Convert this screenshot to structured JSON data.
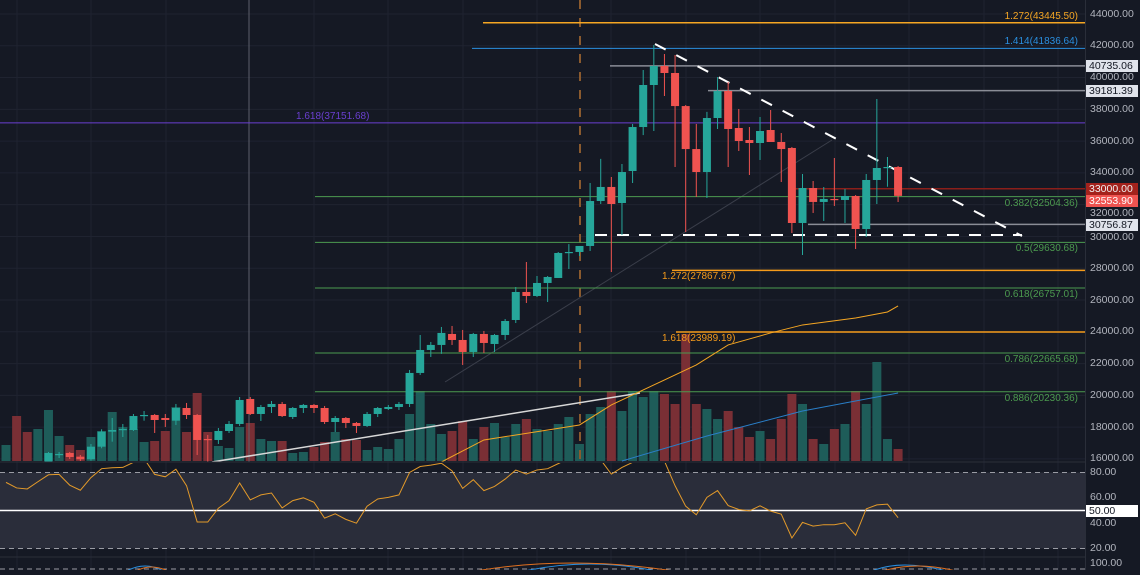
{
  "chart_data": {
    "type": "candlestick",
    "title": "",
    "y_ticks": [
      44000,
      42000,
      40000,
      38000,
      36000,
      34000,
      32000,
      30000,
      28000,
      26000,
      24000,
      22000,
      20000,
      18000,
      16000
    ],
    "y_tick_labels": [
      "44000.00",
      "42000.00",
      "40000.00",
      "38000.00",
      "36000.00",
      "34000.00",
      "32000.00",
      "30000.00",
      "28000.00",
      "26000.00",
      "24000.00",
      "22000.00",
      "20000.00",
      "18000.00",
      "16000.00"
    ],
    "ylim": [
      15500,
      44800
    ],
    "colors": {
      "up": "#26a69a",
      "down": "#ef5350",
      "background": "#151924"
    },
    "pre_bars_direction": [
      "up",
      "down",
      "down",
      "up"
    ],
    "candles_ohlc": [
      null,
      null,
      null,
      null,
      [
        15807,
        16437,
        15744,
        16374
      ],
      [
        16292,
        16437,
        16059,
        16311
      ],
      [
        16374,
        16437,
        15997,
        16122
      ],
      [
        16141,
        16248,
        15870,
        15977
      ],
      [
        15977,
        16940,
        15890,
        16770
      ],
      [
        16770,
        17865,
        16670,
        17714
      ],
      [
        17714,
        18576,
        17085,
        17820
      ],
      [
        17820,
        18199,
        17381,
        17884
      ],
      [
        17820,
        18828,
        17758,
        18700
      ],
      [
        18700,
        19016,
        18407,
        18765
      ],
      [
        18765,
        18828,
        17632,
        18450
      ],
      [
        18576,
        18828,
        18010,
        18450
      ],
      [
        18407,
        19458,
        18136,
        19205
      ],
      [
        19205,
        19521,
        18513,
        18765
      ],
      [
        18765,
        18828,
        16248,
        17192
      ],
      [
        17255,
        17507,
        15807,
        17192
      ],
      [
        17192,
        17947,
        16940,
        17758
      ],
      [
        17758,
        18388,
        17632,
        18199
      ],
      [
        18199,
        19898,
        18073,
        19709
      ],
      [
        19772,
        19898,
        18765,
        18828
      ],
      [
        18828,
        19395,
        18388,
        19268
      ],
      [
        19268,
        19647,
        18891,
        19458
      ],
      [
        19458,
        19584,
        18639,
        18700
      ],
      [
        18639,
        19268,
        18513,
        19205
      ],
      [
        19205,
        19458,
        18891,
        19395
      ],
      [
        19395,
        19458,
        18891,
        19205
      ],
      [
        19205,
        19332,
        18199,
        18324
      ],
      [
        18324,
        18700,
        17695,
        18576
      ],
      [
        18576,
        18639,
        17947,
        18262
      ],
      [
        18262,
        18324,
        17632,
        18073
      ],
      [
        18073,
        18954,
        18010,
        18828
      ],
      [
        18828,
        19268,
        18639,
        19205
      ],
      [
        19143,
        19395,
        19080,
        19268
      ],
      [
        19268,
        19584,
        19080,
        19458
      ],
      [
        19458,
        21598,
        19268,
        21410
      ],
      [
        21410,
        23800,
        21284,
        22856
      ],
      [
        22856,
        23361,
        22416,
        23173
      ],
      [
        23173,
        24304,
        22610,
        23928
      ],
      [
        23863,
        24367,
        23173,
        23485
      ],
      [
        23485,
        24116,
        21912,
        22730
      ],
      [
        22730,
        23928,
        22416,
        23863
      ],
      [
        23863,
        24053,
        22668,
        23297
      ],
      [
        23234,
        23863,
        22730,
        23800
      ],
      [
        23800,
        24806,
        23485,
        24680
      ],
      [
        24743,
        26820,
        24554,
        26506
      ],
      [
        26506,
        28393,
        25814,
        26254
      ],
      [
        26254,
        27512,
        26191,
        27073
      ],
      [
        27073,
        27512,
        25876,
        27450
      ],
      [
        27387,
        29023,
        27387,
        28960
      ],
      [
        28960,
        29520,
        27953,
        29023
      ],
      [
        29023,
        29401,
        28770,
        29401
      ],
      [
        29401,
        33365,
        29086,
        32231
      ],
      [
        32231,
        34884,
        32043,
        33115
      ],
      [
        33115,
        33742,
        27764,
        32043
      ],
      [
        32106,
        34560,
        30093,
        34055
      ],
      [
        34118,
        37080,
        33365,
        36887
      ],
      [
        36887,
        40475,
        36380,
        39532
      ],
      [
        39532,
        42048,
        36637,
        40727
      ],
      [
        40727,
        41483,
        38840,
        40287
      ],
      [
        40287,
        41420,
        34372,
        38206
      ],
      [
        38206,
        38273,
        30281,
        35501
      ],
      [
        35501,
        37080,
        32484,
        34055
      ],
      [
        34055,
        37840,
        32421,
        37455
      ],
      [
        37455,
        40035,
        36763,
        39155
      ],
      [
        39155,
        39721,
        34372,
        36763
      ],
      [
        36826,
        38021,
        35379,
        36008
      ],
      [
        36071,
        36887,
        33868,
        35882
      ],
      [
        35882,
        37519,
        34813,
        36637
      ],
      [
        36700,
        37958,
        35945,
        35945
      ],
      [
        35945,
        36510,
        33428,
        35501
      ],
      [
        35568,
        35631,
        30218,
        30848
      ],
      [
        30848,
        33931,
        28835,
        33050
      ],
      [
        33050,
        33491,
        31478,
        32172
      ],
      [
        32172,
        33113,
        30974,
        32359
      ],
      [
        32359,
        34938,
        31918,
        32296
      ],
      [
        32296,
        32990,
        30848,
        32547
      ],
      [
        32547,
        32610,
        29211,
        30470
      ],
      [
        30470,
        33931,
        29968,
        33554
      ],
      [
        33554,
        38651,
        32043,
        34309
      ],
      [
        34309,
        35001,
        33130,
        34372
      ],
      [
        34372,
        34435,
        32169,
        32553.9
      ]
    ],
    "volume_relative": [
      16,
      45,
      29,
      32,
      51,
      25,
      16,
      11,
      24,
      30,
      49,
      34,
      32,
      19,
      20,
      30,
      54,
      29,
      68,
      29,
      15,
      13,
      34,
      38,
      22,
      20,
      20,
      8,
      9,
      14,
      19,
      29,
      22,
      21,
      11,
      14,
      12,
      22,
      47,
      70,
      37,
      27,
      30,
      40,
      22,
      34,
      38,
      24,
      37,
      42,
      32,
      30,
      37,
      44,
      17,
      47,
      54,
      70,
      50,
      70,
      64,
      70,
      67,
      57,
      127,
      57,
      52,
      42,
      50,
      34,
      24,
      30,
      22,
      42,
      67,
      57,
      22,
      17,
      32,
      37,
      70,
      57,
      99,
      22,
      12
    ],
    "moving_average": {
      "color": "#f5a623",
      "points": [
        [
          41,
          15807
        ],
        [
          45,
          17192
        ],
        [
          54,
          18136
        ],
        [
          57,
          19395
        ],
        [
          61,
          20654
        ],
        [
          65,
          21912
        ],
        [
          68,
          23173
        ],
        [
          72,
          23928
        ],
        [
          75,
          24431
        ],
        [
          80,
          24869
        ],
        [
          83,
          25247
        ],
        [
          84,
          25624
        ]
      ]
    },
    "volume_ma": {
      "color": "#2a7fc9",
      "points": [
        [
          58,
          0
        ],
        [
          66,
          25
        ],
        [
          75,
          50
        ],
        [
          84,
          68
        ]
      ]
    },
    "fib_levels": [
      {
        "label": "1.272(43445.50)",
        "price": 43445.5,
        "color": "#f5a623"
      },
      {
        "label": "1.414(41836.64)",
        "price": 41836.64,
        "color": "#2a8fe0"
      },
      {
        "label": "1.618(37151.68)",
        "price": 37151.68,
        "color": "#6a3fd0"
      },
      {
        "label": "0.382(32504.36)",
        "price": 32504.36,
        "color": "#4c9a4f"
      },
      {
        "label": "0.5(29630.68)",
        "price": 29630.68,
        "color": "#4c9a4f"
      },
      {
        "label": "1.272(27867.67)",
        "price": 27867.67,
        "color": "#f59b1b"
      },
      {
        "label": "0.618(26757.01)",
        "price": 26757.01,
        "color": "#4c9a4f"
      },
      {
        "label": "1.618(23989.19)",
        "price": 23989.19,
        "color": "#f59b1b"
      },
      {
        "label": "0.786(22665.68)",
        "price": 22665.68,
        "color": "#4c9a4f"
      },
      {
        "label": "0.886(20230.36)",
        "price": 20230.36,
        "color": "#4c9a4f"
      }
    ],
    "price_tags": [
      {
        "label": "40735.06",
        "price": 40735.06,
        "style": "grey",
        "line_color": "#8a8d96"
      },
      {
        "label": "39181.39",
        "price": 39181.39,
        "style": "grey",
        "line_color": "#8a8d96"
      },
      {
        "label": "33000.00",
        "price": 33000.0,
        "style": "darkred",
        "line_color": "#8c1f1a"
      },
      {
        "label": "32553.90",
        "price": 32553.9,
        "style": "red",
        "line_color": null
      },
      {
        "label": "30756.87",
        "price": 30756.87,
        "style": "grey",
        "line_color": "#8a8d96"
      }
    ],
    "rsi": {
      "color": "#e39a2a",
      "levels": [
        80,
        50,
        20
      ],
      "y_ticks": [
        80,
        60,
        40,
        20
      ],
      "y_tick_labels": [
        "80.00",
        "60.00",
        "40.00",
        "20.00"
      ],
      "midline_tag": "50.00",
      "values": [
        72.2,
        67.8,
        67,
        72.7,
        78.2,
        78.5,
        70,
        66,
        76,
        83,
        83.7,
        84,
        88,
        91,
        78.5,
        76.6,
        82.6,
        69.6,
        40.9,
        40.9,
        51.8,
        57.8,
        71.7,
        58.4,
        62.3,
        63.8,
        52,
        57.8,
        60,
        56.5,
        44,
        47.4,
        43,
        40,
        53.4,
        59.1,
        60.4,
        62.3,
        80,
        84.7,
        85.8,
        87.3,
        81.3,
        67.5,
        74.3,
        65.7,
        69,
        74.8,
        81.9,
        78.7,
        82,
        83,
        87,
        91,
        93,
        93,
        90,
        78.7,
        84,
        88,
        93,
        94,
        89,
        69.6,
        53.4,
        46.6,
        60.4,
        65.7,
        53.9,
        50.8,
        49.7,
        53.7,
        49.5,
        47.1,
        28.3,
        40.6,
        37.7,
        38.8,
        38.8,
        40.3,
        30.4,
        51.3,
        54.4,
        55,
        44.3
      ]
    },
    "lower_pane": {
      "y_tick_label": "100.00"
    }
  }
}
